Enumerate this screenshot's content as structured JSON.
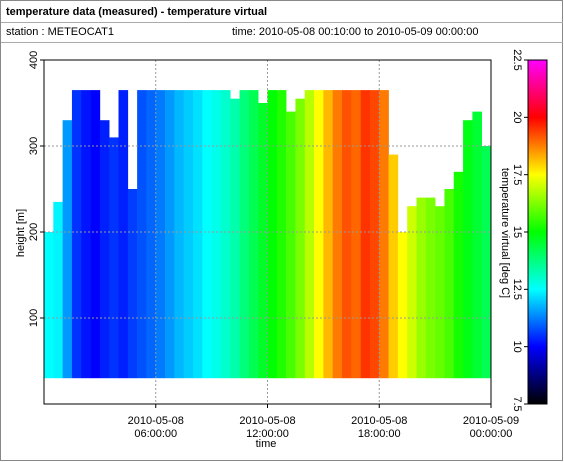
{
  "chart_data": {
    "type": "heatmap",
    "title": "temperature data (measured) - temperature virtual",
    "station": "station : METEOCAT1",
    "time_range": "time: 2010-05-08 00:10:00 to 2010-05-09 00:00:00",
    "x_label": "time",
    "y_label": "height [m]",
    "colorbar_label": "temperature virtual [deg C]",
    "x": [
      "2010-05-08 00:00:00",
      "2010-05-08 00:30:00",
      "2010-05-08 01:00:00",
      "2010-05-08 01:30:00",
      "2010-05-08 02:00:00",
      "2010-05-08 02:30:00",
      "2010-05-08 03:00:00",
      "2010-05-08 03:30:00",
      "2010-05-08 04:00:00",
      "2010-05-08 04:30:00",
      "2010-05-08 05:00:00",
      "2010-05-08 05:30:00",
      "2010-05-08 06:00:00",
      "2010-05-08 06:30:00",
      "2010-05-08 07:00:00",
      "2010-05-08 07:30:00",
      "2010-05-08 08:00:00",
      "2010-05-08 08:30:00",
      "2010-05-08 09:00:00",
      "2010-05-08 09:30:00",
      "2010-05-08 10:00:00",
      "2010-05-08 10:30:00",
      "2010-05-08 11:00:00",
      "2010-05-08 11:30:00",
      "2010-05-08 12:00:00",
      "2010-05-08 12:30:00",
      "2010-05-08 13:00:00",
      "2010-05-08 13:30:00",
      "2010-05-08 14:00:00",
      "2010-05-08 14:30:00",
      "2010-05-08 15:00:00",
      "2010-05-08 15:30:00",
      "2010-05-08 16:00:00",
      "2010-05-08 16:30:00",
      "2010-05-08 17:00:00",
      "2010-05-08 17:30:00",
      "2010-05-08 18:00:00",
      "2010-05-08 18:30:00",
      "2010-05-08 19:00:00",
      "2010-05-08 19:30:00",
      "2010-05-08 20:00:00",
      "2010-05-08 20:30:00",
      "2010-05-08 21:00:00",
      "2010-05-08 21:30:00",
      "2010-05-08 22:00:00",
      "2010-05-08 22:30:00",
      "2010-05-08 23:00:00",
      "2010-05-08 23:30:00"
    ],
    "values": [
      12.5,
      12.4,
      11.5,
      10.5,
      10.2,
      10.0,
      10.3,
      10.5,
      10.3,
      10.6,
      10.8,
      11.0,
      11.2,
      11.5,
      11.8,
      12.0,
      12.2,
      12.5,
      12.7,
      13.0,
      13.3,
      13.8,
      14.2,
      14.6,
      15.0,
      15.3,
      15.7,
      16.2,
      16.8,
      17.5,
      18.2,
      18.8,
      19.2,
      19.0,
      19.5,
      19.3,
      18.8,
      18.0,
      17.5,
      17.0,
      16.5,
      16.2,
      16.0,
      15.7,
      15.2,
      14.8,
      14.5,
      14.2
    ],
    "top": [
      200,
      235,
      330,
      365,
      365,
      365,
      330,
      310,
      365,
      250,
      365,
      365,
      365,
      365,
      365,
      365,
      365,
      365,
      365,
      365,
      355,
      365,
      365,
      350,
      365,
      365,
      340,
      355,
      365,
      365,
      365,
      365,
      365,
      365,
      365,
      365,
      365,
      290,
      200,
      230,
      240,
      240,
      230,
      250,
      270,
      330,
      340,
      300
    ],
    "bottom": 30,
    "xlim": [
      "2010-05-08 00:00:00",
      "2010-05-09 00:00:00"
    ],
    "xticks": [
      {
        "value": "2010-05-08 06:00:00",
        "label": [
          "2010-05-08",
          "06:00:00"
        ]
      },
      {
        "value": "2010-05-08 12:00:00",
        "label": [
          "2010-05-08",
          "12:00:00"
        ]
      },
      {
        "value": "2010-05-08 18:00:00",
        "label": [
          "2010-05-08",
          "18:00:00"
        ]
      },
      {
        "value": "2010-05-09 00:00:00",
        "label": [
          "2010-05-09",
          "00:00:00"
        ]
      }
    ],
    "ylim": [
      0,
      400
    ],
    "yticks": [
      100,
      200,
      300,
      400
    ],
    "zlim": [
      7.5,
      22.5
    ],
    "zticks": [
      7.5,
      10,
      12.5,
      15,
      17.5,
      20,
      22.5
    ],
    "colorscale": [
      "#000000",
      "#0000ff",
      "#00ffff",
      "#00ff00",
      "#ffff00",
      "#ff0000",
      "#ff00ff"
    ],
    "grid": true
  }
}
